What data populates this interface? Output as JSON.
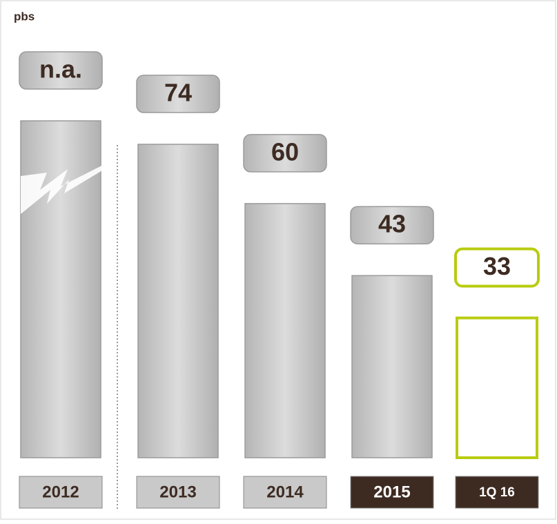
{
  "chart_data": {
    "type": "bar",
    "unit_label": "pbs",
    "categories": [
      "2012",
      "2013",
      "2014",
      "2015",
      "1Q 16"
    ],
    "values": [
      null,
      74,
      60,
      43,
      33
    ],
    "value_labels": [
      "n.a.",
      "74",
      "60",
      "43",
      "33"
    ],
    "colors": [
      "#c9c9c9",
      "#c9c9c9",
      "#c9c9c9",
      "#c9c9c9",
      "#ffffff"
    ],
    "border_colors": [
      "#9a9a9a",
      "#9a9a9a",
      "#9a9a9a",
      "#9a9a9a",
      "#b8cc10"
    ],
    "category_colors": [
      "#c9c9c9",
      "#c9c9c9",
      "#c9c9c9",
      "#3d2b22",
      "#3d2b22"
    ],
    "category_text_colors": [
      "#3d2b22",
      "#3d2b22",
      "#3d2b22",
      "#ffffff",
      "#ffffff"
    ]
  }
}
